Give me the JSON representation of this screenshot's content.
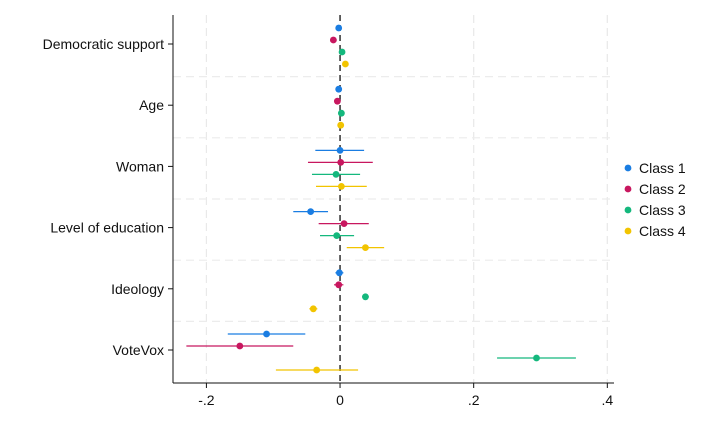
{
  "chart_data": {
    "type": "scatter",
    "subtype": "coefficient-plot",
    "orientation": "horizontal",
    "title": "",
    "xlabel": "",
    "ylabel": "",
    "xlim": [
      -0.25,
      0.41
    ],
    "xticks": [
      -0.2,
      0,
      0.2,
      0.4
    ],
    "xtick_labels": [
      "-.2",
      "0",
      ".2",
      ".4"
    ],
    "reference_line": 0,
    "grid": true,
    "legend_position": "right",
    "categories": [
      "Democratic support",
      "Age",
      "Woman",
      "Level of education",
      "Ideology",
      "VoteVox"
    ],
    "series": [
      {
        "name": "Class 1",
        "color": "#1a7de2",
        "estimates": [
          -0.002,
          -0.002,
          0.0,
          -0.044,
          -0.001,
          -0.11
        ],
        "ci_low": [
          -0.004,
          -0.004,
          -0.037,
          -0.07,
          -0.007,
          -0.168
        ],
        "ci_high": [
          0.001,
          0.0,
          0.036,
          -0.018,
          0.005,
          -0.052
        ]
      },
      {
        "name": "Class 2",
        "color": "#c8175f",
        "estimates": [
          -0.01,
          -0.004,
          0.001,
          0.006,
          -0.002,
          -0.15
        ],
        "ci_low": [
          -0.015,
          -0.007,
          -0.048,
          -0.032,
          -0.009,
          -0.23
        ],
        "ci_high": [
          -0.005,
          -0.001,
          0.049,
          0.043,
          0.005,
          -0.07
        ]
      },
      {
        "name": "Class 3",
        "color": "#14b87d",
        "estimates": [
          0.003,
          0.002,
          -0.006,
          -0.005,
          0.038,
          0.294
        ],
        "ci_low": [
          0.0,
          -0.001,
          -0.042,
          -0.03,
          0.033,
          0.235
        ],
        "ci_high": [
          0.006,
          0.005,
          0.03,
          0.021,
          0.043,
          0.353
        ]
      },
      {
        "name": "Class 4",
        "color": "#f2c400",
        "estimates": [
          0.008,
          0.001,
          0.002,
          0.038,
          -0.04,
          -0.035
        ],
        "ci_low": [
          0.004,
          -0.002,
          -0.036,
          0.01,
          -0.046,
          -0.096
        ],
        "ci_high": [
          0.012,
          0.004,
          0.04,
          0.066,
          -0.034,
          0.027
        ]
      }
    ]
  }
}
